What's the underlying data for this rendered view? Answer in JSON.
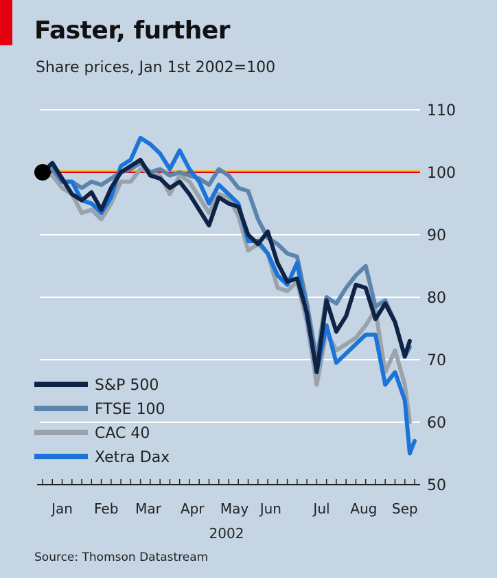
{
  "title": "Faster, further",
  "subtitle": "Share prices, Jan 1st 2002=100",
  "source": "Source: Thomson Datastream",
  "colors": {
    "background": "#c5d5e3",
    "grid": "#ffffff",
    "baseline": "#e0001a",
    "baseline_highlight": "#f0c030",
    "sp500": "#0f2346",
    "ftse100": "#5c84ad",
    "cac40": "#9aa2ac",
    "dax": "#1d74d8",
    "start_marker": "#000000"
  },
  "chart_data": {
    "type": "line",
    "title": "Faster, further",
    "subtitle": "Share prices, Jan 1st 2002=100",
    "xlabel": "2002",
    "ylabel": "",
    "ylim": [
      50,
      110
    ],
    "yticks": [
      50,
      60,
      70,
      80,
      90,
      100,
      110
    ],
    "baseline": 100,
    "grid": true,
    "legend_position": "bottom-left",
    "xlim": [
      0,
      38
    ],
    "x_unit": "weeks",
    "month_labels": [
      {
        "label": "Jan",
        "x": 2
      },
      {
        "label": "Feb",
        "x": 6.5
      },
      {
        "label": "Mar",
        "x": 10.8
      },
      {
        "label": "Apr",
        "x": 15.3
      },
      {
        "label": "May",
        "x": 19.6
      },
      {
        "label": "Jun",
        "x": 23.3
      },
      {
        "label": "Jul",
        "x": 28.5
      },
      {
        "label": "Aug",
        "x": 32.8
      },
      {
        "label": "Sep",
        "x": 37
      }
    ],
    "year_label": "2002",
    "series": [
      {
        "name": "S&P 500",
        "key": "sp500",
        "width": 6,
        "values": [
          {
            "x": 0,
            "y": 100
          },
          {
            "x": 1,
            "y": 101.5
          },
          {
            "x": 2,
            "y": 99
          },
          {
            "x": 3,
            "y": 96.5
          },
          {
            "x": 4,
            "y": 95.5
          },
          {
            "x": 5,
            "y": 96.8
          },
          {
            "x": 6,
            "y": 94
          },
          {
            "x": 7,
            "y": 97.5
          },
          {
            "x": 8,
            "y": 100
          },
          {
            "x": 9,
            "y": 101
          },
          {
            "x": 10,
            "y": 102
          },
          {
            "x": 11,
            "y": 99.5
          },
          {
            "x": 12,
            "y": 99
          },
          {
            "x": 13,
            "y": 97.5
          },
          {
            "x": 14,
            "y": 98.5
          },
          {
            "x": 15,
            "y": 96.5
          },
          {
            "x": 16,
            "y": 94
          },
          {
            "x": 17,
            "y": 91.5
          },
          {
            "x": 18,
            "y": 96
          },
          {
            "x": 19,
            "y": 95
          },
          {
            "x": 20,
            "y": 94.5
          },
          {
            "x": 21,
            "y": 90
          },
          {
            "x": 22,
            "y": 88.5
          },
          {
            "x": 23,
            "y": 90.5
          },
          {
            "x": 24,
            "y": 85.5
          },
          {
            "x": 25,
            "y": 82.5
          },
          {
            "x": 26,
            "y": 83
          },
          {
            "x": 27,
            "y": 77.5
          },
          {
            "x": 28,
            "y": 68
          },
          {
            "x": 29,
            "y": 79.5
          },
          {
            "x": 30,
            "y": 74.5
          },
          {
            "x": 31,
            "y": 77
          },
          {
            "x": 32,
            "y": 82
          },
          {
            "x": 33,
            "y": 81.5
          },
          {
            "x": 34,
            "y": 76.5
          },
          {
            "x": 35,
            "y": 79
          },
          {
            "x": 36,
            "y": 76
          },
          {
            "x": 37,
            "y": 70.5
          },
          {
            "x": 37.5,
            "y": 73
          }
        ]
      },
      {
        "name": "FTSE 100",
        "key": "ftse100",
        "width": 6,
        "values": [
          {
            "x": 0,
            "y": 100
          },
          {
            "x": 1,
            "y": 100.5
          },
          {
            "x": 2,
            "y": 98.5
          },
          {
            "x": 3,
            "y": 98.5
          },
          {
            "x": 4,
            "y": 97.5
          },
          {
            "x": 5,
            "y": 98.5
          },
          {
            "x": 6,
            "y": 98
          },
          {
            "x": 7,
            "y": 99
          },
          {
            "x": 8,
            "y": 100
          },
          {
            "x": 9,
            "y": 100.5
          },
          {
            "x": 10,
            "y": 101.5
          },
          {
            "x": 11,
            "y": 100
          },
          {
            "x": 12,
            "y": 100.5
          },
          {
            "x": 13,
            "y": 99.5
          },
          {
            "x": 14,
            "y": 100
          },
          {
            "x": 15,
            "y": 99.5
          },
          {
            "x": 16,
            "y": 99
          },
          {
            "x": 17,
            "y": 98
          },
          {
            "x": 18,
            "y": 100.5
          },
          {
            "x": 19,
            "y": 99.5
          },
          {
            "x": 20,
            "y": 97.5
          },
          {
            "x": 21,
            "y": 97
          },
          {
            "x": 22,
            "y": 92.5
          },
          {
            "x": 23,
            "y": 89.5
          },
          {
            "x": 24,
            "y": 88.5
          },
          {
            "x": 25,
            "y": 87
          },
          {
            "x": 26,
            "y": 86.5
          },
          {
            "x": 27,
            "y": 79
          },
          {
            "x": 28,
            "y": 70
          },
          {
            "x": 29,
            "y": 80
          },
          {
            "x": 30,
            "y": 79
          },
          {
            "x": 31,
            "y": 81.5
          },
          {
            "x": 32,
            "y": 83.5
          },
          {
            "x": 33,
            "y": 85
          },
          {
            "x": 34,
            "y": 78.5
          },
          {
            "x": 35,
            "y": 79.5
          },
          {
            "x": 36,
            "y": 76
          },
          {
            "x": 37,
            "y": 70.5
          },
          {
            "x": 37.5,
            "y": 72
          }
        ]
      },
      {
        "name": "CAC 40",
        "key": "cac40",
        "width": 6,
        "values": [
          {
            "x": 0,
            "y": 100
          },
          {
            "x": 1,
            "y": 99.5
          },
          {
            "x": 2,
            "y": 97.5
          },
          {
            "x": 3,
            "y": 96.5
          },
          {
            "x": 4,
            "y": 93.5
          },
          {
            "x": 5,
            "y": 94
          },
          {
            "x": 6,
            "y": 92.5
          },
          {
            "x": 7,
            "y": 95
          },
          {
            "x": 8,
            "y": 98.5
          },
          {
            "x": 9,
            "y": 98.5
          },
          {
            "x": 10,
            "y": 100.5
          },
          {
            "x": 11,
            "y": 100
          },
          {
            "x": 12,
            "y": 99.5
          },
          {
            "x": 13,
            "y": 96.5
          },
          {
            "x": 14,
            "y": 99.5
          },
          {
            "x": 15,
            "y": 98.5
          },
          {
            "x": 16,
            "y": 96
          },
          {
            "x": 17,
            "y": 93.5
          },
          {
            "x": 18,
            "y": 96.5
          },
          {
            "x": 19,
            "y": 96
          },
          {
            "x": 20,
            "y": 93
          },
          {
            "x": 21,
            "y": 87.5
          },
          {
            "x": 22,
            "y": 88.5
          },
          {
            "x": 23,
            "y": 87
          },
          {
            "x": 24,
            "y": 81.5
          },
          {
            "x": 25,
            "y": 81
          },
          {
            "x": 26,
            "y": 82.5
          },
          {
            "x": 27,
            "y": 76
          },
          {
            "x": 28,
            "y": 66
          },
          {
            "x": 29,
            "y": 74.5
          },
          {
            "x": 30,
            "y": 71.5
          },
          {
            "x": 31,
            "y": 72.5
          },
          {
            "x": 32,
            "y": 73.5
          },
          {
            "x": 33,
            "y": 75.5
          },
          {
            "x": 34,
            "y": 78
          },
          {
            "x": 35,
            "y": 68
          },
          {
            "x": 36,
            "y": 71.5
          },
          {
            "x": 37,
            "y": 66
          },
          {
            "x": 37.5,
            "y": 60
          }
        ]
      },
      {
        "name": "Xetra Dax",
        "key": "dax",
        "width": 6,
        "values": [
          {
            "x": 0,
            "y": 100
          },
          {
            "x": 1,
            "y": 101.5
          },
          {
            "x": 2,
            "y": 98.5
          },
          {
            "x": 3,
            "y": 98.5
          },
          {
            "x": 4,
            "y": 95.5
          },
          {
            "x": 5,
            "y": 95
          },
          {
            "x": 6,
            "y": 93.5
          },
          {
            "x": 7,
            "y": 96
          },
          {
            "x": 8,
            "y": 101
          },
          {
            "x": 9,
            "y": 102
          },
          {
            "x": 10,
            "y": 105.5
          },
          {
            "x": 11,
            "y": 104.5
          },
          {
            "x": 12,
            "y": 103
          },
          {
            "x": 13,
            "y": 100.5
          },
          {
            "x": 14,
            "y": 103.5
          },
          {
            "x": 15,
            "y": 100.5
          },
          {
            "x": 16,
            "y": 98.5
          },
          {
            "x": 17,
            "y": 95
          },
          {
            "x": 18,
            "y": 98
          },
          {
            "x": 19,
            "y": 96.5
          },
          {
            "x": 20,
            "y": 95
          },
          {
            "x": 21,
            "y": 89
          },
          {
            "x": 22,
            "y": 89
          },
          {
            "x": 23,
            "y": 87
          },
          {
            "x": 24,
            "y": 83.5
          },
          {
            "x": 25,
            "y": 82
          },
          {
            "x": 26,
            "y": 85.5
          },
          {
            "x": 27,
            "y": 77
          },
          {
            "x": 28,
            "y": 68
          },
          {
            "x": 29,
            "y": 75.5
          },
          {
            "x": 30,
            "y": 69.5
          },
          {
            "x": 31,
            "y": 71
          },
          {
            "x": 32,
            "y": 72.5
          },
          {
            "x": 33,
            "y": 74
          },
          {
            "x": 34,
            "y": 74
          },
          {
            "x": 35,
            "y": 66
          },
          {
            "x": 36,
            "y": 68
          },
          {
            "x": 37,
            "y": 63.5
          },
          {
            "x": 37.5,
            "y": 55
          },
          {
            "x": 38,
            "y": 57
          }
        ]
      }
    ]
  }
}
